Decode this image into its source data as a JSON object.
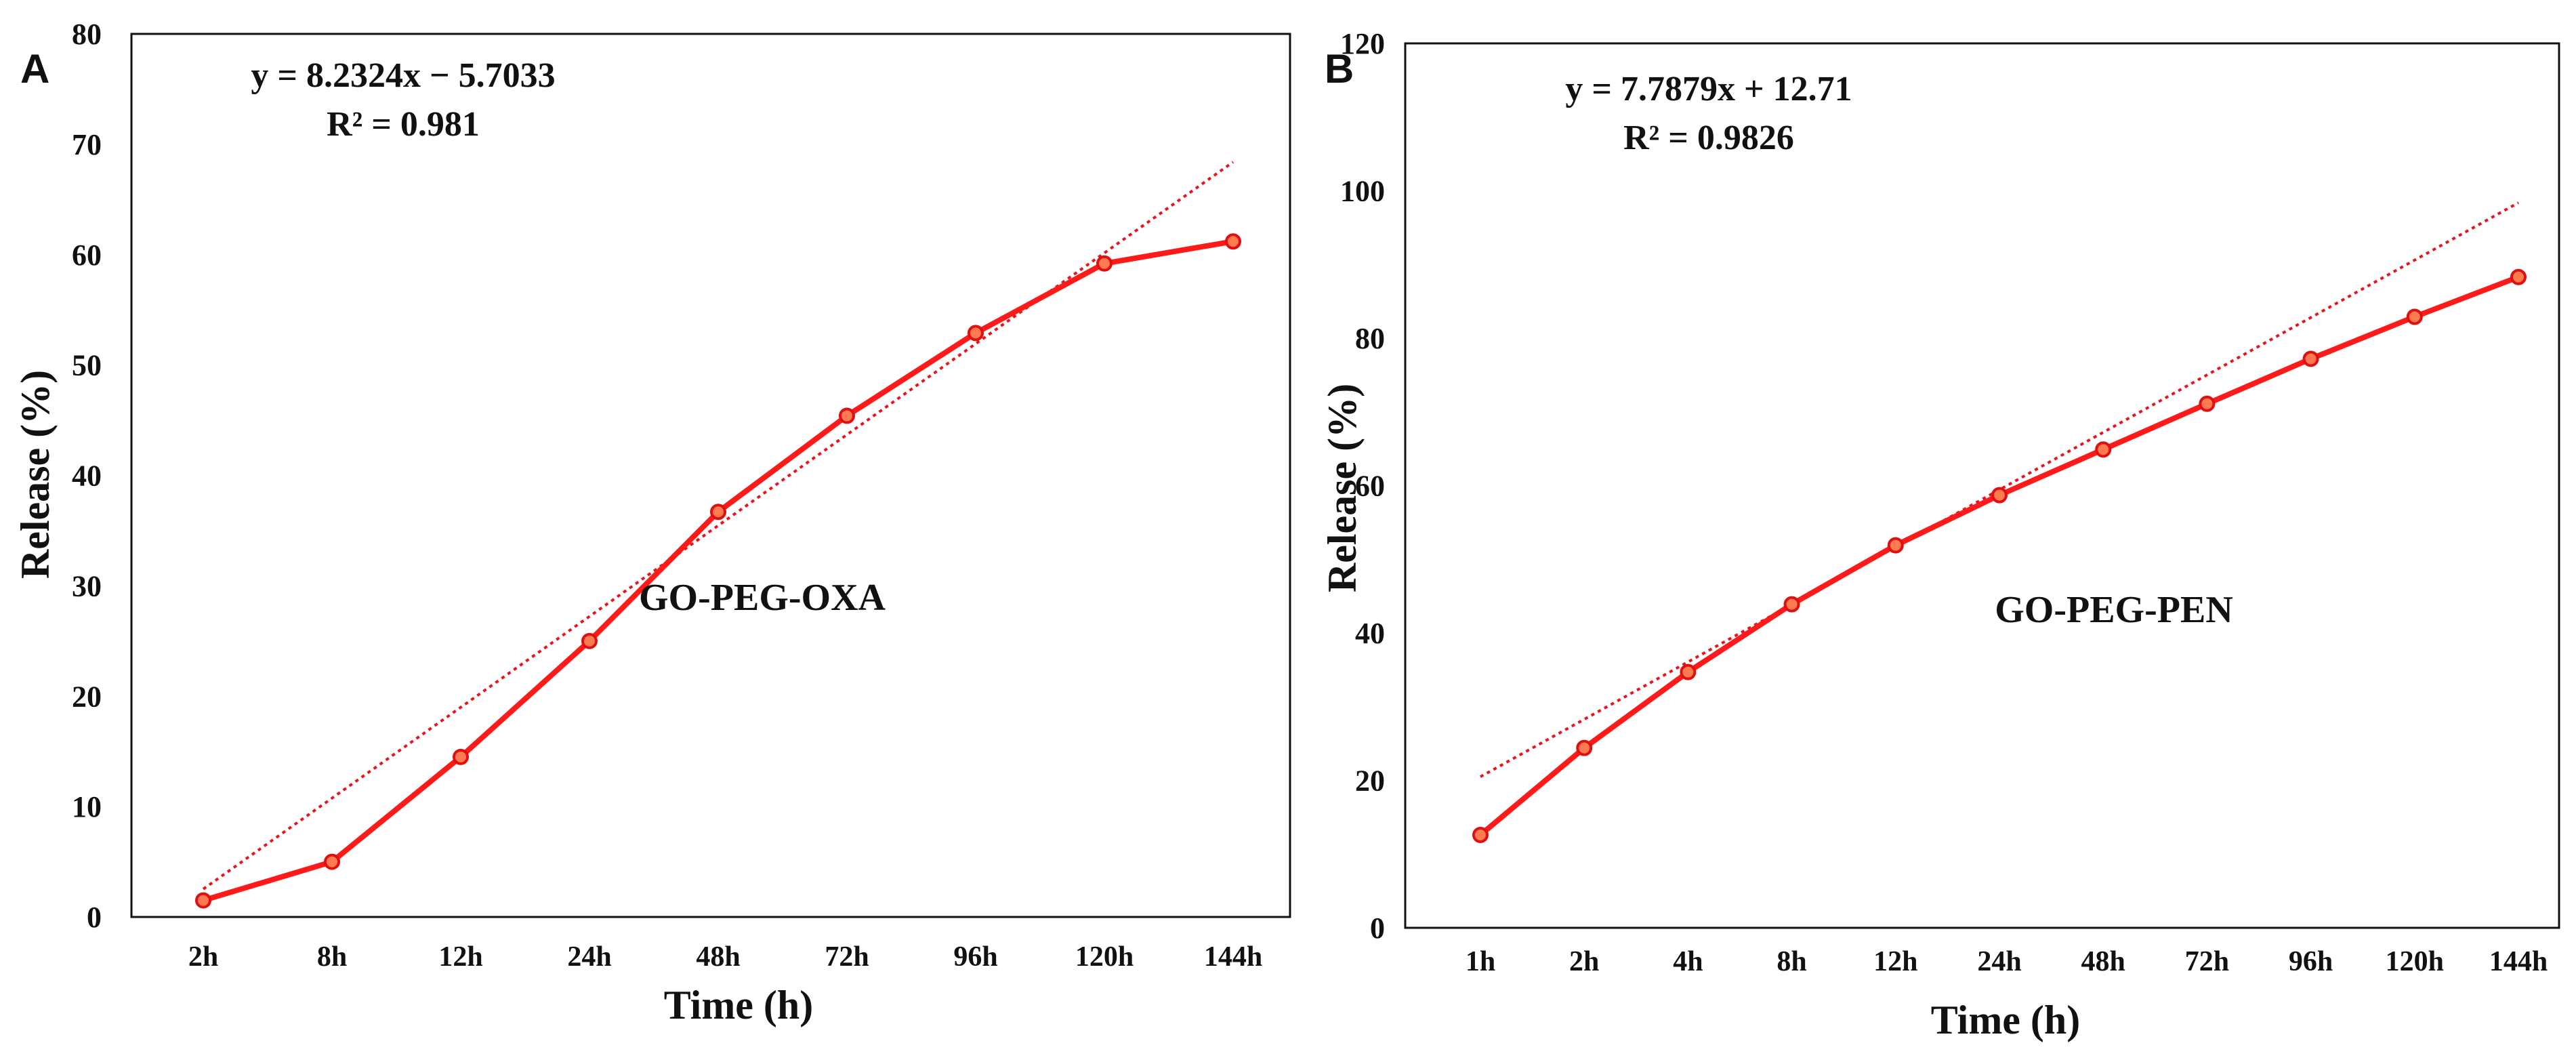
{
  "colors": {
    "line": "#ff1a1a",
    "trend": "#e8141b",
    "marker_fill": "#ff7a50",
    "marker_edge": "#e01010",
    "frame": "#111111"
  },
  "chart_data": [
    {
      "panel_label": "A",
      "type": "line",
      "annotation": "GO-PEG-OXA",
      "xlabel": "Time (h)",
      "ylabel": "Release (%)",
      "categories": [
        "2h",
        "8h",
        "12h",
        "24h",
        "48h",
        "72h",
        "96h",
        "120h",
        "144h"
      ],
      "series": [
        {
          "name": "GO-PEG-OXA",
          "values": [
            1.5,
            5.0,
            14.5,
            25.0,
            36.7,
            45.4,
            52.9,
            59.2,
            61.2
          ]
        }
      ],
      "ylim": [
        0,
        80
      ],
      "yticks": [
        0,
        10,
        20,
        30,
        40,
        50,
        60,
        70,
        80
      ],
      "ytick_labels": [
        "0",
        "10",
        "20",
        "30",
        "40",
        "50",
        "60",
        "70",
        "80"
      ],
      "trendline": {
        "slope": 8.2324,
        "intercept": -5.7033,
        "type": "linear"
      },
      "equation": "y = 8.2324x − 5.7033",
      "r2_text": "R² = 0.981"
    },
    {
      "panel_label": "B",
      "type": "line",
      "annotation": "GO-PEG-PEN",
      "xlabel": "Time (h)",
      "ylabel": "Release (%)",
      "categories": [
        "1h",
        "2h",
        "4h",
        "8h",
        "12h",
        "24h",
        "48h",
        "72h",
        "96h",
        "120h",
        "144h"
      ],
      "series": [
        {
          "name": "GO-PEG-PEN",
          "values": [
            12.6,
            24.4,
            34.7,
            43.9,
            51.9,
            58.7,
            64.9,
            71.1,
            77.2,
            82.9,
            88.3
          ]
        }
      ],
      "ylim": [
        0,
        120
      ],
      "yticks": [
        0,
        20,
        40,
        60,
        80,
        100,
        120
      ],
      "ytick_labels": [
        "0",
        "20",
        "40",
        "60",
        "80",
        "100",
        "120"
      ],
      "trendline": {
        "slope": 7.7879,
        "intercept": 12.71,
        "type": "linear"
      },
      "equation": "y = 7.7879x + 12.71",
      "r2_text": "R² = 0.9826"
    }
  ]
}
